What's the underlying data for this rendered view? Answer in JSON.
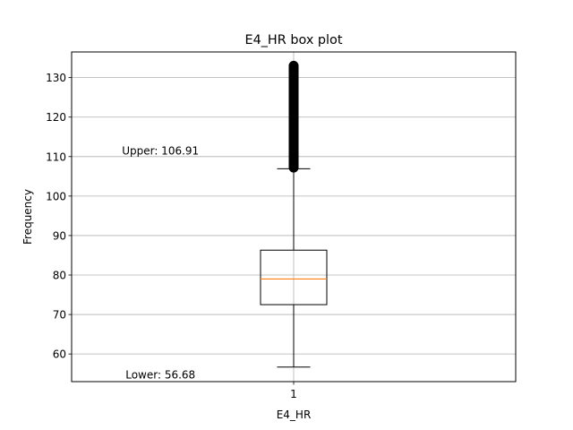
{
  "chart_data": {
    "type": "box",
    "title": "E4_HR box plot",
    "xlabel": "E4_HR",
    "ylabel": "Frequency",
    "ylim": [
      53,
      136.5
    ],
    "xlim": [
      0.5,
      1.5
    ],
    "yticks": [
      60,
      70,
      80,
      90,
      100,
      110,
      120,
      130
    ],
    "xticks": [
      {
        "value": 1,
        "label": "1"
      }
    ],
    "grid": true,
    "series": [
      {
        "position": 1,
        "whisker_low": 56.68,
        "q1": 72.5,
        "median": 79,
        "q3": 86.3,
        "whisker_high": 106.91,
        "outliers": {
          "min": 107.2,
          "max": 133
        }
      }
    ],
    "annotations": [
      {
        "text": "Upper: 106.91",
        "x": 0.7,
        "y": 110.5
      },
      {
        "text": "Lower: 56.68",
        "x": 0.7,
        "y": 53.8
      }
    ],
    "colors": {
      "box": "#000000",
      "median": "#ff7f0e",
      "grid": "#b0b0b0",
      "outlier": "#000000"
    }
  }
}
